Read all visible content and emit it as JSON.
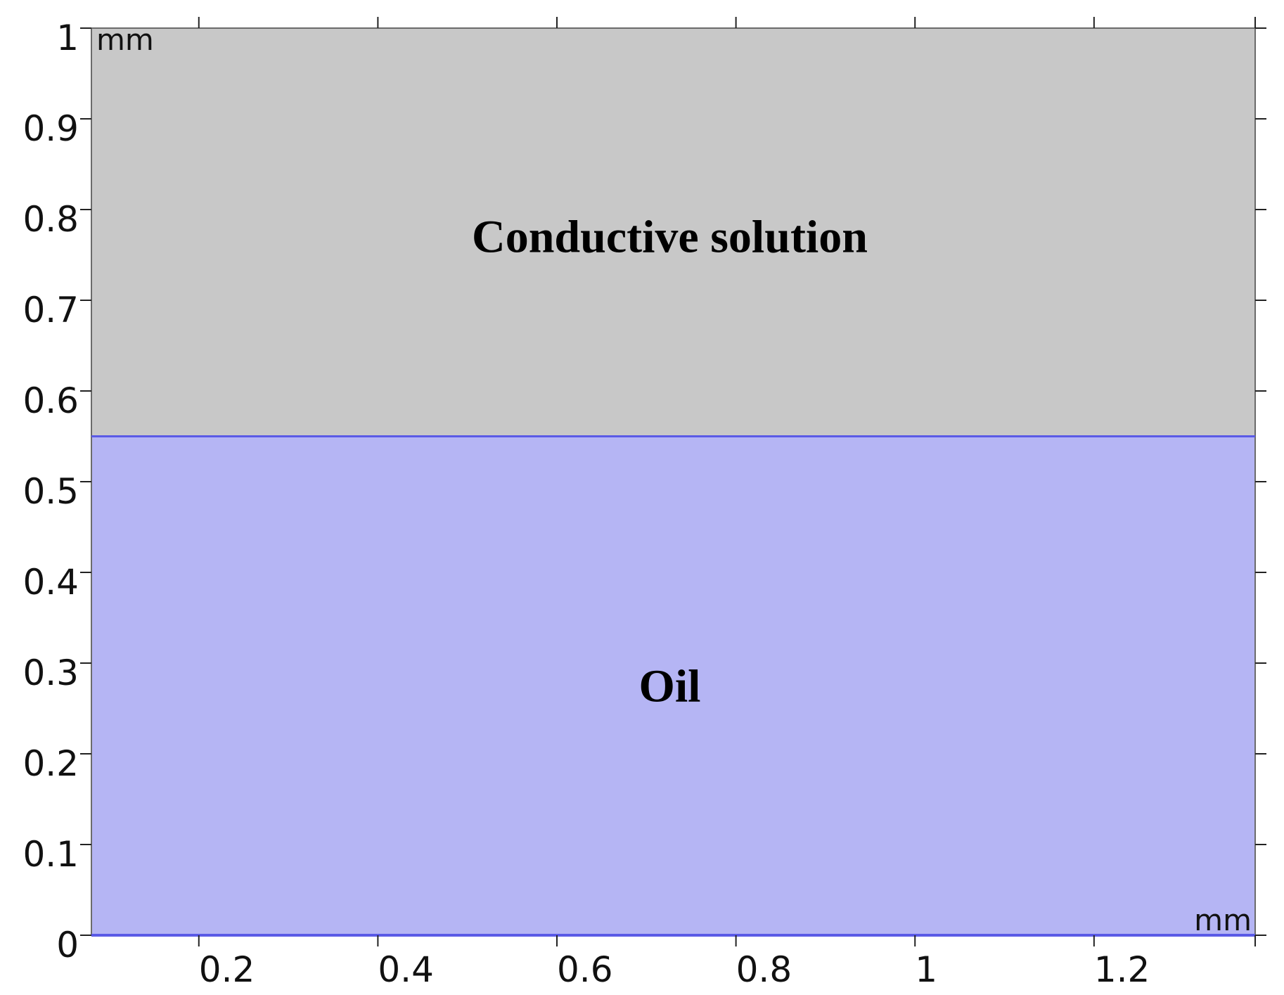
{
  "geometry_plot": {
    "x_unit": "mm",
    "y_unit": "mm",
    "xlim": [
      0.08,
      1.38
    ],
    "ylim": [
      0,
      1
    ],
    "x_ticks": [
      {
        "value": 0.2,
        "label": "0.2"
      },
      {
        "value": 0.4,
        "label": "0.4"
      },
      {
        "value": 0.6,
        "label": "0.6"
      },
      {
        "value": 0.8,
        "label": "0.8"
      },
      {
        "value": 1.0,
        "label": "1"
      },
      {
        "value": 1.2,
        "label": "1.2"
      }
    ],
    "y_ticks": [
      {
        "value": 0,
        "label": "0"
      },
      {
        "value": 0.1,
        "label": "0.1"
      },
      {
        "value": 0.2,
        "label": "0.2"
      },
      {
        "value": 0.3,
        "label": "0.3"
      },
      {
        "value": 0.4,
        "label": "0.4"
      },
      {
        "value": 0.5,
        "label": "0.5"
      },
      {
        "value": 0.6,
        "label": "0.6"
      },
      {
        "value": 0.7,
        "label": "0.7"
      },
      {
        "value": 0.8,
        "label": "0.8"
      },
      {
        "value": 0.9,
        "label": "0.9"
      },
      {
        "value": 1.0,
        "label": "1"
      }
    ],
    "regions": [
      {
        "name": "conductive-solution",
        "label": "Conductive solution",
        "y_from": 0.55,
        "y_to": 1.0,
        "color": "#c8c8c8"
      },
      {
        "name": "oil",
        "label": "Oil",
        "y_from": 0.0,
        "y_to": 0.55,
        "color": "#b5b5f4"
      }
    ],
    "interface_y": 0.55,
    "interface_color": "#5a5ae6"
  }
}
